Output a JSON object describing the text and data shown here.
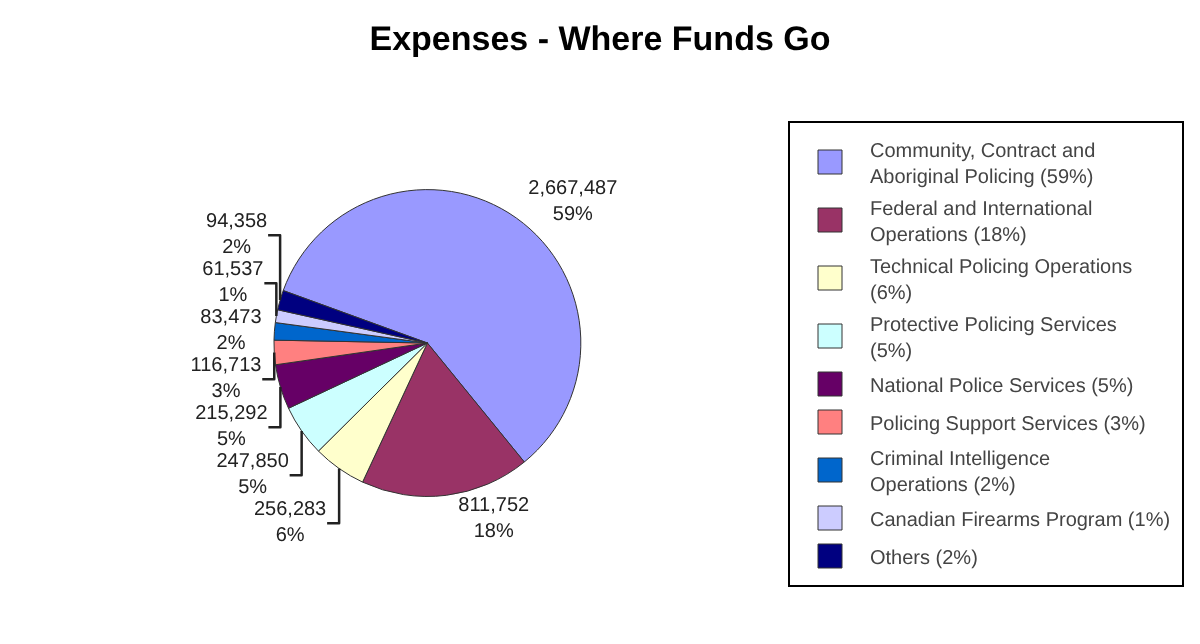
{
  "chart_data": {
    "type": "pie",
    "title": "Expenses - Where Funds Go",
    "categories": [
      "Community, Contract and Aboriginal Policing (59%)",
      "Federal and International Operations (18%)",
      "Technical Policing Operations (6%)",
      "Protective Policing Services (5%)",
      "National Police Services (5%)",
      "Policing Support Services (3%)",
      "Criminal Intelligence Operations (2%)",
      "Canadian Firearms Program (1%)",
      "Others (2%)"
    ],
    "values": [
      2667487,
      811752,
      256283,
      247850,
      215292,
      116713,
      83473,
      61537,
      94358
    ],
    "value_labels": [
      "2,667,487\n59%",
      "811,752\n18%",
      "256,283\n6%",
      "247,850\n5%",
      "215,292\n5%",
      "116,713\n3%",
      "83,473\n2%",
      "61,537\n1%",
      "94,358\n2%"
    ],
    "colors": [
      "#9999ff",
      "#993366",
      "#ffffcc",
      "#ccffff",
      "#660066",
      "#ff8080",
      "#0066cc",
      "#ccccff",
      "#000080"
    ],
    "legend": "right"
  }
}
